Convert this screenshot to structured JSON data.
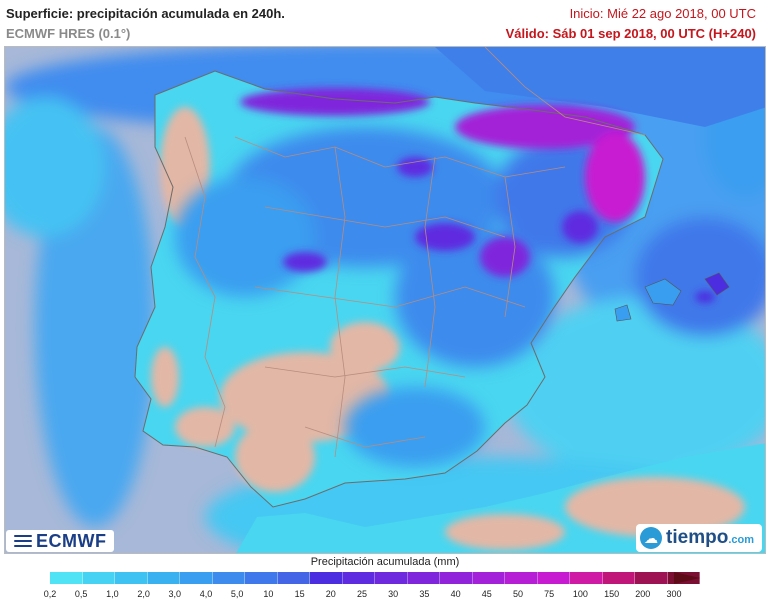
{
  "header": {
    "title": "Superficie: precipitación acumulada en 240h.",
    "model": "ECMWF HRES (0.1°)",
    "init": "Inicio: Mié 22 ago 2018, 00 UTC",
    "valid": "Válido: Sáb 01 sep 2018, 00 UTC (H+240)"
  },
  "logos": {
    "ecmwf": "ECMWF",
    "tiempo": "tiempo",
    "tiempo_suffix": ".com"
  },
  "legend": {
    "title": "Precipitación acumulada (mm)",
    "ticks": [
      "0,2",
      "0,5",
      "1,0",
      "2,0",
      "3,0",
      "4,0",
      "5,0",
      "10",
      "15",
      "20",
      "25",
      "30",
      "35",
      "40",
      "45",
      "50",
      "75",
      "100",
      "150",
      "200",
      "300"
    ],
    "colors": [
      "#4fe3f5",
      "#45d2f3",
      "#3ec2f2",
      "#39b0f0",
      "#3a9ef0",
      "#3c8bed",
      "#3f78ea",
      "#4466e6",
      "#4c2ee0",
      "#5e2be0",
      "#6e29de",
      "#7f26dc",
      "#9124da",
      "#a321d8",
      "#b51ed5",
      "#c71bd1",
      "#cf1aa6",
      "#c01679",
      "#9d1252",
      "#7a0e33"
    ],
    "overflow_color": "#5e0b18"
  },
  "map": {
    "colors": {
      "sea": "#a7b8d8",
      "land_dry": "#e2b7a6",
      "light_precip": "#49d6f0",
      "medium_precip": "#3a8cef",
      "heavy_precip": "#4a40e0",
      "very_heavy": "#a23ad9",
      "extreme": "#d22bd6",
      "borders": "#b98c7e"
    }
  }
}
